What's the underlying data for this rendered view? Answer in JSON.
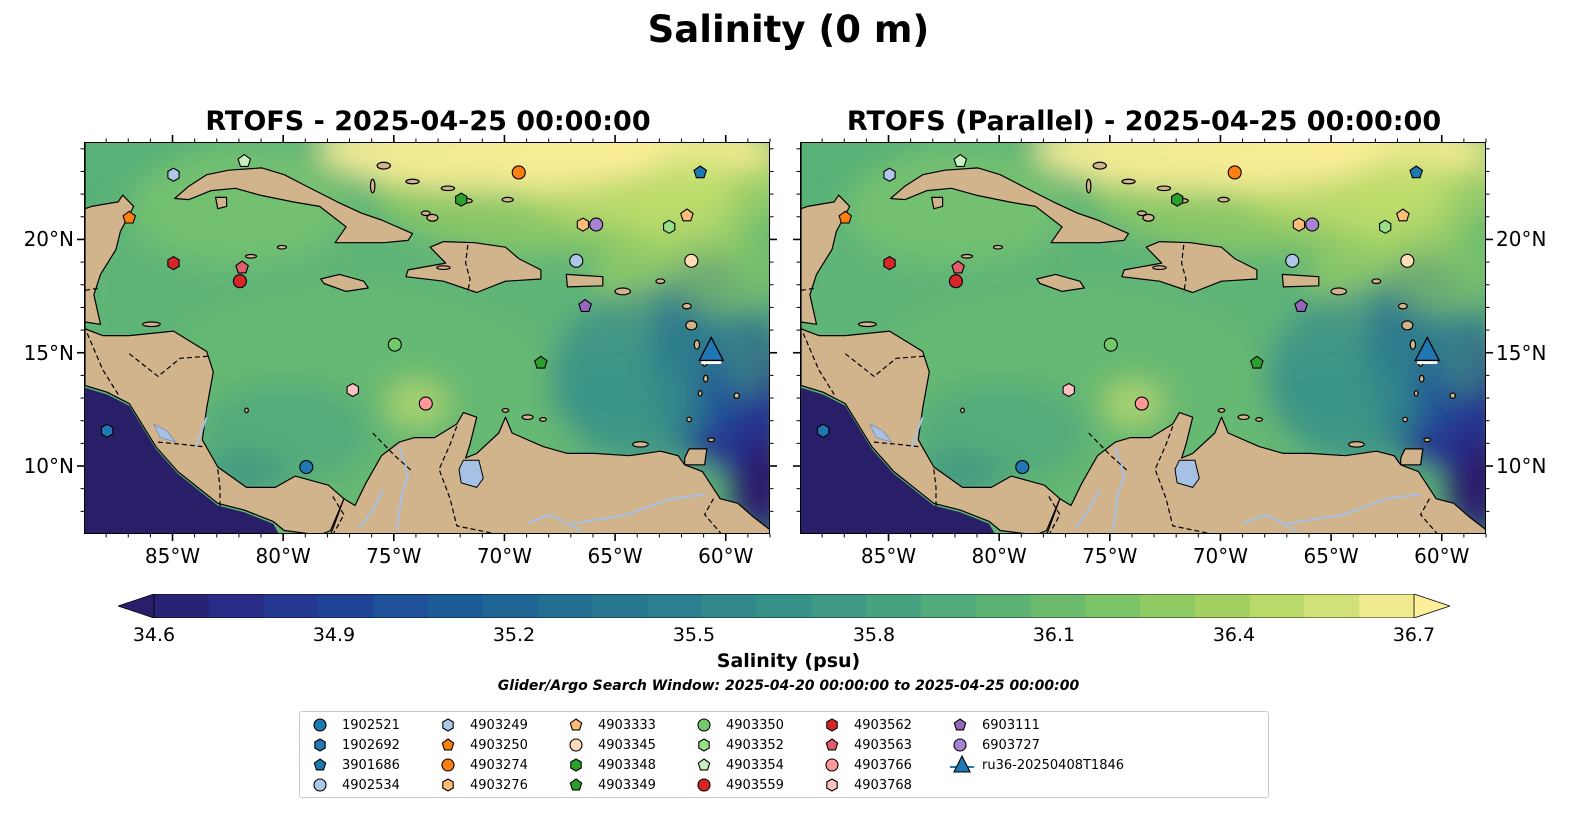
{
  "suptitle": "Salinity (0 m)",
  "panels": [
    {
      "title": "RTOFS - 2025-04-25 00:00:00",
      "lat_labels_side": "left"
    },
    {
      "title": "RTOFS (Parallel) - 2025-04-25 00:00:00",
      "lat_labels_side": "right"
    }
  ],
  "map_extent": {
    "lon": [
      -89,
      -58
    ],
    "lat": [
      7,
      24.3
    ]
  },
  "lon_ticks": [
    {
      "value": -85,
      "label": "85°W"
    },
    {
      "value": -80,
      "label": "80°W"
    },
    {
      "value": -75,
      "label": "75°W"
    },
    {
      "value": -70,
      "label": "70°W"
    },
    {
      "value": -65,
      "label": "65°W"
    },
    {
      "value": -60,
      "label": "60°W"
    }
  ],
  "lat_ticks": [
    {
      "value": 10,
      "label": "10°N"
    },
    {
      "value": 15,
      "label": "15°N"
    },
    {
      "value": 20,
      "label": "20°N"
    }
  ],
  "colors": {
    "land": "#d2b48c",
    "pacific": "#291f69",
    "lake": "#a6c1e3"
  },
  "colorbar": {
    "label": "Salinity (psu)",
    "min": 34.6,
    "max": 36.7,
    "extend": "both",
    "ticks": [
      "34.6",
      "34.9",
      "35.2",
      "35.5",
      "35.8",
      "36.1",
      "36.4",
      "36.7"
    ],
    "colormap": "haline-like",
    "stops": [
      "#2a1e6c",
      "#27308f",
      "#1f4a9a",
      "#1d5f96",
      "#237092",
      "#2c808e",
      "#369289",
      "#46a180",
      "#5ab275",
      "#78c168",
      "#9ccf5f",
      "#c6dd6d",
      "#fdee99"
    ]
  },
  "search_window": "Glider/Argo Search Window: 2025-04-20 00:00:00 to 2025-04-25 00:00:00",
  "legend": [
    {
      "label": "1902521",
      "marker": "circle",
      "color": "#1f77b4"
    },
    {
      "label": "1902692",
      "marker": "hexagon",
      "color": "#1f77b4"
    },
    {
      "label": "3901686",
      "marker": "pentagon",
      "color": "#1f77b4"
    },
    {
      "label": "4902534",
      "marker": "circle",
      "color": "#aec7e8"
    },
    {
      "label": "4903249",
      "marker": "hexagon",
      "color": "#aec7e8"
    },
    {
      "label": "4903250",
      "marker": "pentagon",
      "color": "#ff7f0e"
    },
    {
      "label": "4903274",
      "marker": "circle",
      "color": "#ff7f0e"
    },
    {
      "label": "4903276",
      "marker": "hexagon",
      "color": "#ffbb78"
    },
    {
      "label": "4903333",
      "marker": "pentagon",
      "color": "#ffbb78"
    },
    {
      "label": "4903345",
      "marker": "circle",
      "color": "#ffddb8"
    },
    {
      "label": "4903348",
      "marker": "hexagon",
      "color": "#2ca02c"
    },
    {
      "label": "4903349",
      "marker": "pentagon",
      "color": "#2ca02c"
    },
    {
      "label": "4903350",
      "marker": "circle",
      "color": "#72c96a"
    },
    {
      "label": "4903352",
      "marker": "hexagon",
      "color": "#98df8a"
    },
    {
      "label": "4903354",
      "marker": "pentagon",
      "color": "#c9f0c2"
    },
    {
      "label": "4903559",
      "marker": "circle",
      "color": "#d62728"
    },
    {
      "label": "4903562",
      "marker": "hexagon",
      "color": "#d62728"
    },
    {
      "label": "4903563",
      "marker": "pentagon",
      "color": "#e05d6a"
    },
    {
      "label": "4903766",
      "marker": "circle",
      "color": "#ff9896"
    },
    {
      "label": "4903768",
      "marker": "hexagon",
      "color": "#ffc2c0"
    },
    {
      "label": "6903111",
      "marker": "pentagon",
      "color": "#9467bd"
    },
    {
      "label": "6903727",
      "marker": "circle",
      "color": "#a883d4"
    },
    {
      "label": "ru36-20250408T1846",
      "marker": "triangle-line",
      "color": "#1f77b4"
    }
  ],
  "observations": [
    {
      "id": "1902521",
      "lon": -79.0,
      "lat": 10.0
    },
    {
      "id": "1902692",
      "lon": -88.0,
      "lat": 11.6
    },
    {
      "id": "3901686",
      "lon": -61.2,
      "lat": 23.0
    },
    {
      "id": "4902534",
      "lon": -66.8,
      "lat": 19.1
    },
    {
      "id": "4903249",
      "lon": -85.0,
      "lat": 22.9
    },
    {
      "id": "4903250",
      "lon": -87.0,
      "lat": 21.0
    },
    {
      "id": "4903274",
      "lon": -69.4,
      "lat": 23.0
    },
    {
      "id": "4903276",
      "lon": -66.5,
      "lat": 20.7
    },
    {
      "id": "4903333",
      "lon": -61.8,
      "lat": 21.1
    },
    {
      "id": "4903345",
      "lon": -61.6,
      "lat": 19.1
    },
    {
      "id": "4903348",
      "lon": -72.0,
      "lat": 21.8
    },
    {
      "id": "4903349",
      "lon": -68.4,
      "lat": 14.6
    },
    {
      "id": "4903350",
      "lon": -75.0,
      "lat": 15.4
    },
    {
      "id": "4903352",
      "lon": -62.6,
      "lat": 20.6
    },
    {
      "id": "4903354",
      "lon": -81.8,
      "lat": 23.5
    },
    {
      "id": "4903559",
      "lon": -82.0,
      "lat": 18.2
    },
    {
      "id": "4903562",
      "lon": -85.0,
      "lat": 19.0
    },
    {
      "id": "4903563",
      "lon": -81.9,
      "lat": 18.8
    },
    {
      "id": "4903766",
      "lon": -73.6,
      "lat": 12.8
    },
    {
      "id": "4903768",
      "lon": -76.9,
      "lat": 13.4
    },
    {
      "id": "6903111",
      "lon": -66.4,
      "lat": 17.1
    },
    {
      "id": "6903727",
      "lon": -65.9,
      "lat": 20.7
    },
    {
      "id": "ru36-20250408T1846",
      "lon": -60.7,
      "lat": 15.1
    }
  ]
}
